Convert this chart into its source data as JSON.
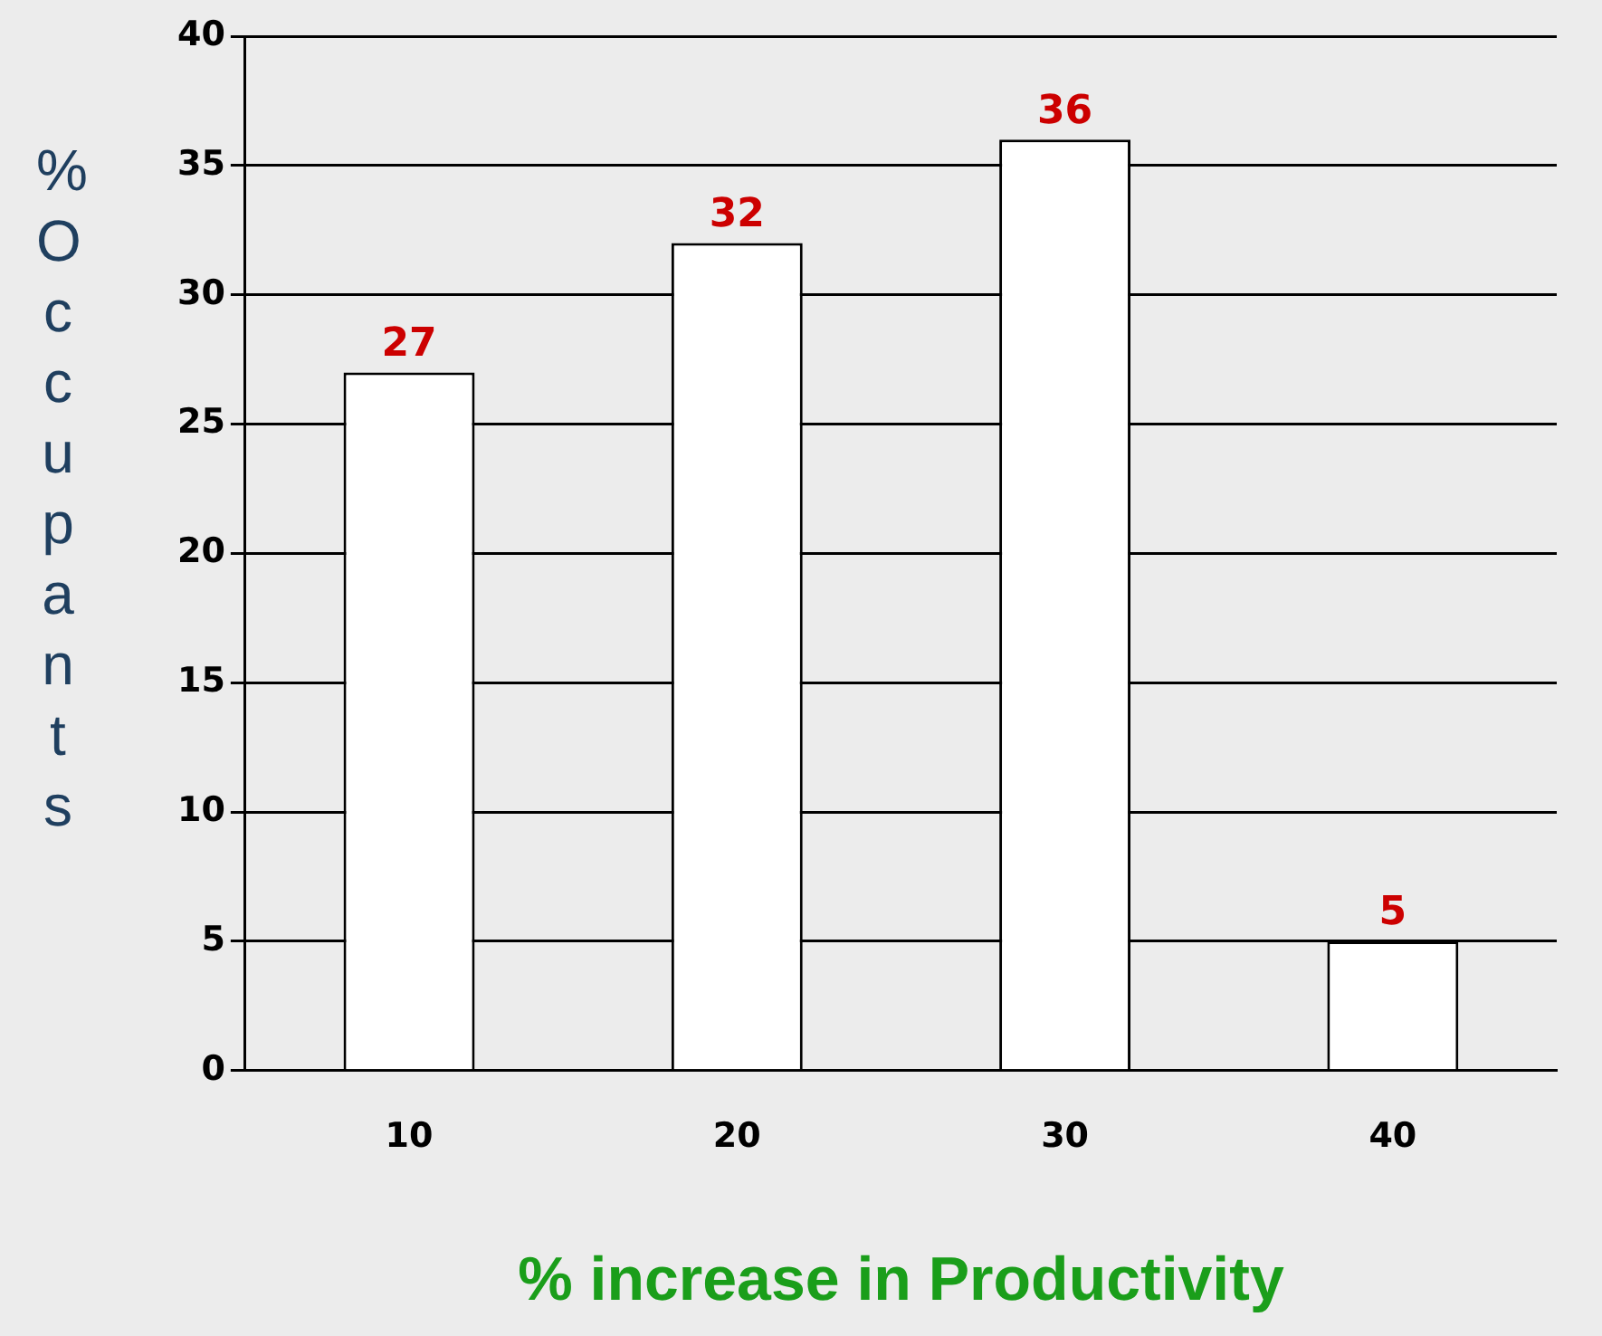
{
  "chart_data": {
    "type": "bar",
    "xlabel": "% increase in Productivity",
    "ylabel": "%Occupants",
    "categories": [
      "10",
      "20",
      "30",
      "40"
    ],
    "values": [
      27,
      32,
      36,
      5
    ],
    "color": "#ffffff",
    "ylim": [
      0,
      40
    ],
    "yticks": [
      0,
      5,
      10,
      15,
      20,
      25,
      30,
      35,
      40
    ],
    "grid": "y",
    "legend": false,
    "data_labels": true
  }
}
